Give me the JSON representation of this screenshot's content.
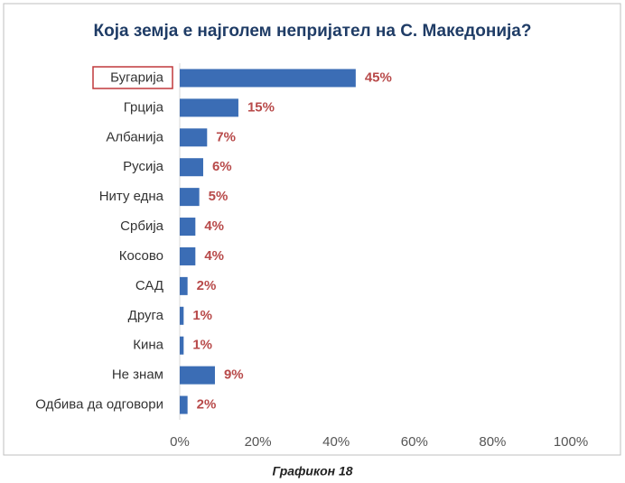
{
  "chart_data": {
    "type": "barh",
    "title": "Која земја е најголем непријател на С. Македонија?",
    "categories": [
      "Бугарија",
      "Грција",
      "Албанија",
      "Русија",
      "Ниту една",
      "Србија",
      "Косово",
      "САД",
      "Друга",
      "Кина",
      "Не знам",
      "Одбива да одговори"
    ],
    "values": [
      45,
      15,
      7,
      6,
      5,
      4,
      4,
      2,
      1,
      1,
      9,
      2
    ],
    "value_labels": [
      "45%",
      "15%",
      "7%",
      "6%",
      "5%",
      "4%",
      "4%",
      "2%",
      "1%",
      "1%",
      "9%",
      "2%"
    ],
    "color": "#3b6db5",
    "label_color": "#b84a4a",
    "xlim": [
      0,
      100
    ],
    "xticks": [
      {
        "value": 0,
        "label": "0%"
      },
      {
        "value": 20,
        "label": "20%"
      },
      {
        "value": 40,
        "label": "40%"
      },
      {
        "value": 60,
        "label": "60%"
      },
      {
        "value": 80,
        "label": "80%"
      },
      {
        "value": 100,
        "label": "100%"
      }
    ]
  },
  "caption": "Графикон 18"
}
